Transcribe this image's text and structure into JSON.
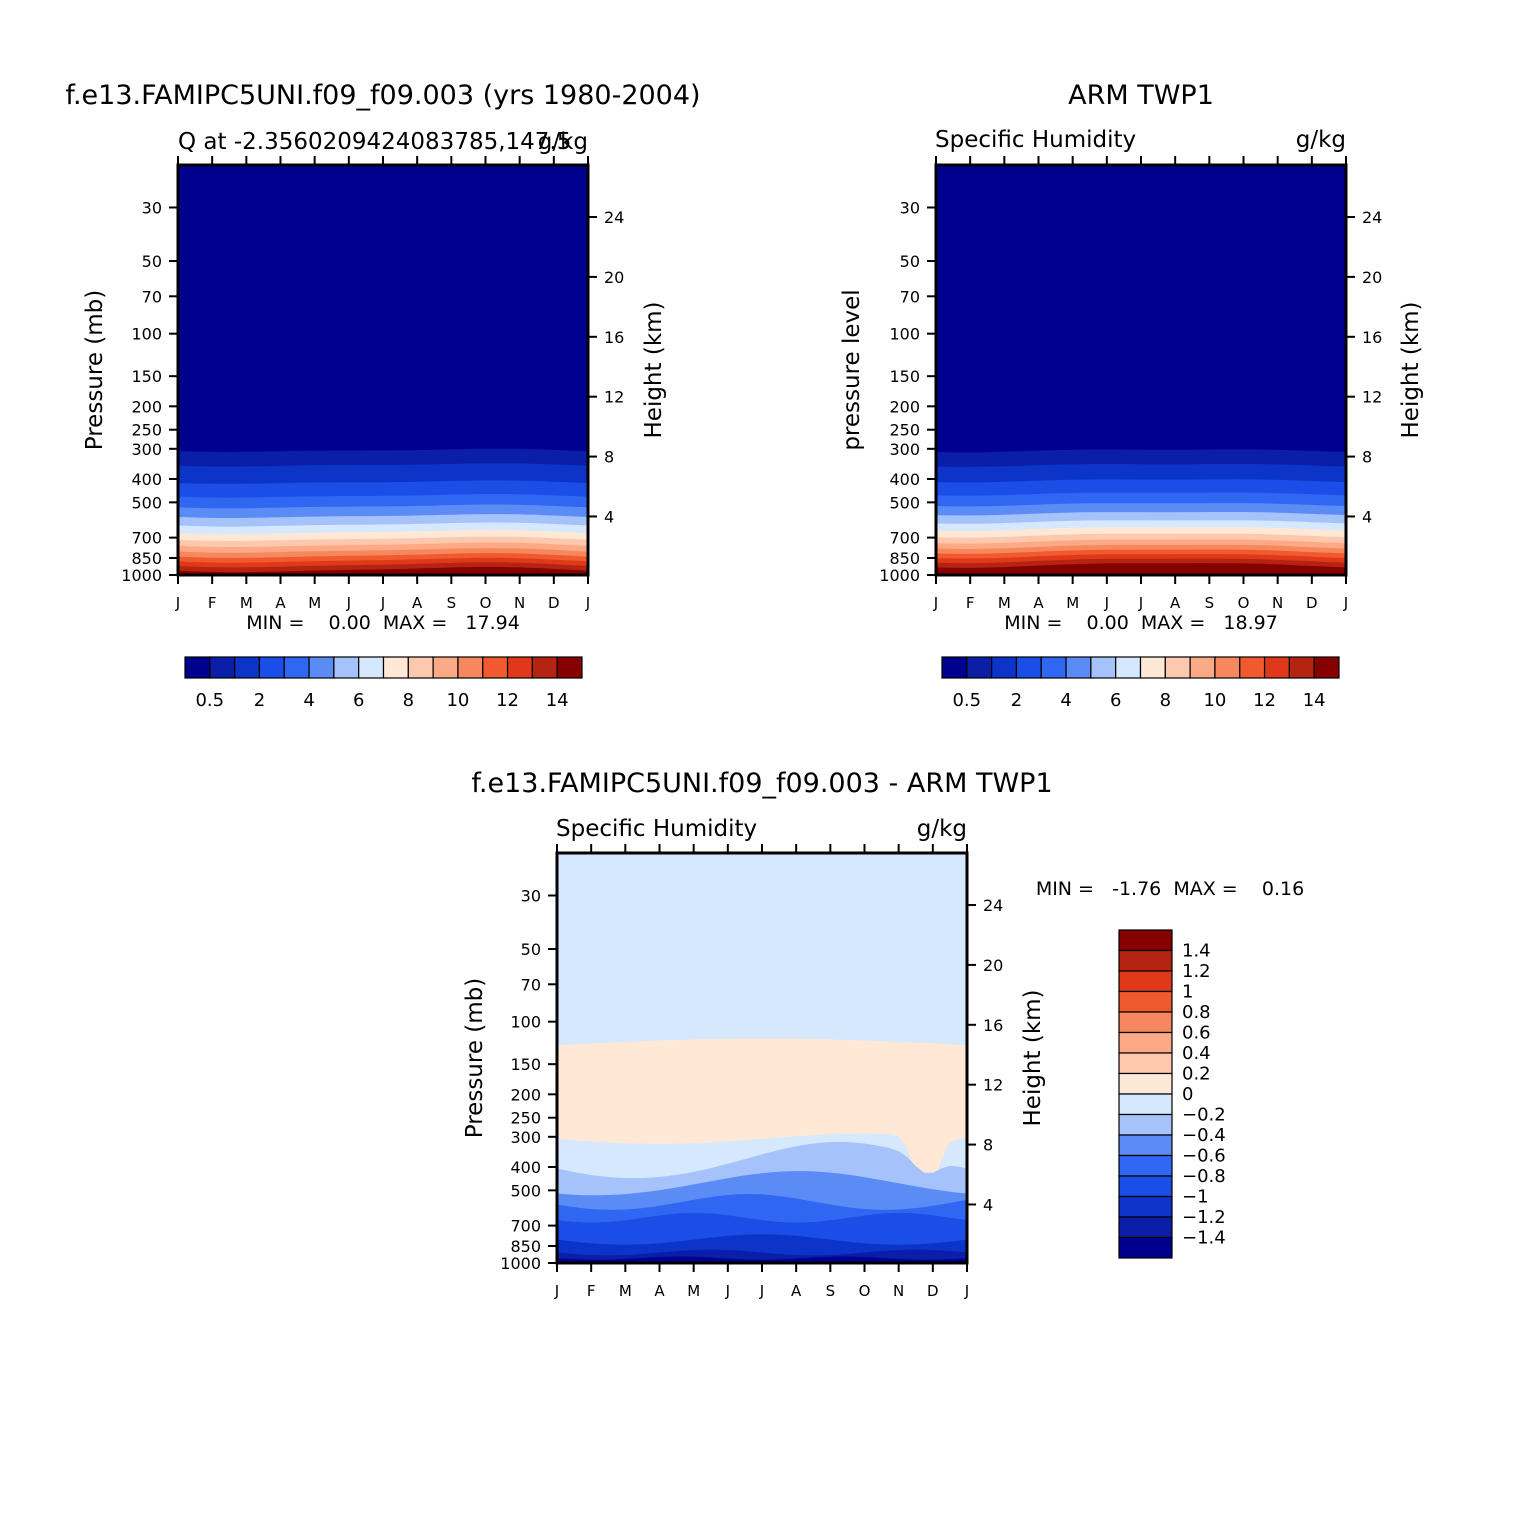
{
  "figure": {
    "panel_left": {
      "main_title": "f.e13.FAMIPC5UNI.f09_f09.003 (yrs 1980-2004)",
      "left_string": "Q at -2.3560209424083785,147.5",
      "right_string": "g/kg",
      "ylabel": "Pressure (mb)",
      "ylabel_right": "Height (km)",
      "minmax": "MIN =    0.00  MAX =   17.94"
    },
    "panel_right": {
      "main_title": "ARM TWP1",
      "left_string": "Specific Humidity",
      "right_string": "g/kg",
      "ylabel": "pressure level",
      "ylabel_right": "Height (km)",
      "minmax": "MIN =    0.00  MAX =   18.97"
    },
    "panel_diff": {
      "main_title": "f.e13.FAMIPC5UNI.f09_f09.003 - ARM TWP1",
      "left_string": "Specific Humidity",
      "right_string": "g/kg",
      "ylabel": "Pressure (mb)",
      "ylabel_right": "Height (km)",
      "minmax": "MIN =   -1.76  MAX =    0.16"
    }
  },
  "colors": {
    "abs_levels": [
      "#00008f",
      "#0a1ea8",
      "#0d34c8",
      "#1a4ee6",
      "#2f66f2",
      "#5b8cf5",
      "#a5c3fa",
      "#d6e8fd",
      "#ffe8d6",
      "#fdc8ad",
      "#fca985",
      "#f7875f",
      "#f05a2e",
      "#e0381b",
      "#b42410",
      "#860000"
    ],
    "diff_levels": [
      "#00008f",
      "#0a1ea8",
      "#0d34c8",
      "#1a4ee6",
      "#2f66f2",
      "#5b8cf5",
      "#a5c3fa",
      "#d6e8fd",
      "#ffe8d6",
      "#fdc8ad",
      "#fca985",
      "#f7875f",
      "#f05a2e",
      "#e0381b",
      "#b42410",
      "#860000"
    ]
  },
  "chart_data": [
    {
      "type": "heatmap",
      "name": "model",
      "x": [
        "J",
        "F",
        "M",
        "A",
        "M",
        "J",
        "J",
        "A",
        "S",
        "O",
        "N",
        "D",
        "J"
      ],
      "pressure_ticks": [
        30,
        50,
        70,
        100,
        150,
        200,
        250,
        300,
        400,
        500,
        700,
        850,
        1000
      ],
      "height_ticks_km": [
        4,
        8,
        12,
        16,
        20,
        24
      ],
      "colorbar_labels": [
        "0.5",
        "2",
        "4",
        "6",
        "8",
        "10",
        "12",
        "14"
      ],
      "min": 0.0,
      "max": 17.94,
      "profile_pressure": [
        300,
        350,
        400,
        450,
        500,
        550,
        600,
        650,
        700,
        750,
        800,
        850,
        900,
        950,
        1000
      ],
      "profile_q": [
        0.45,
        1.0,
        1.8,
        2.6,
        3.6,
        4.6,
        5.6,
        6.7,
        7.8,
        9.0,
        10.2,
        11.5,
        12.8,
        14.0,
        15.0
      ],
      "units": "g/kg"
    },
    {
      "type": "heatmap",
      "name": "obs",
      "x": [
        "J",
        "F",
        "M",
        "A",
        "M",
        "J",
        "J",
        "A",
        "S",
        "O",
        "N",
        "D",
        "J"
      ],
      "pressure_ticks": [
        30,
        50,
        70,
        100,
        150,
        200,
        250,
        300,
        400,
        500,
        700,
        850,
        1000
      ],
      "height_ticks_km": [
        4,
        8,
        12,
        16,
        20,
        24
      ],
      "colorbar_labels": [
        "0.5",
        "2",
        "4",
        "6",
        "8",
        "10",
        "12",
        "14"
      ],
      "min": 0.0,
      "max": 18.97,
      "profile_pressure": [
        300,
        350,
        400,
        450,
        500,
        550,
        600,
        650,
        700,
        750,
        800,
        850,
        900,
        950,
        1000
      ],
      "profile_q": [
        0.45,
        1.0,
        1.9,
        2.8,
        3.8,
        4.9,
        6.0,
        7.2,
        8.4,
        9.7,
        11.1,
        12.5,
        13.8,
        15.0,
        16.0
      ],
      "units": "g/kg"
    },
    {
      "type": "heatmap",
      "name": "difference",
      "x": [
        "J",
        "F",
        "M",
        "A",
        "M",
        "J",
        "J",
        "A",
        "S",
        "O",
        "N",
        "D",
        "J"
      ],
      "pressure_ticks": [
        30,
        50,
        70,
        100,
        150,
        200,
        250,
        300,
        400,
        500,
        700,
        850,
        1000
      ],
      "height_ticks_km": [
        4,
        8,
        12,
        16,
        20,
        24
      ],
      "colorbar_labels": [
        "1.4",
        "1.2",
        "1",
        "0.8",
        "0.6",
        "0.4",
        "0.2",
        "0",
        "-0.2",
        "-0.4",
        "-0.6",
        "-0.8",
        "-1",
        "-1.2",
        "-1.4"
      ],
      "min": -1.76,
      "max": 0.16,
      "upper_boundary_pressure": 125,
      "positive_lower_boundary_pressure": 300,
      "units": "g/kg"
    }
  ]
}
